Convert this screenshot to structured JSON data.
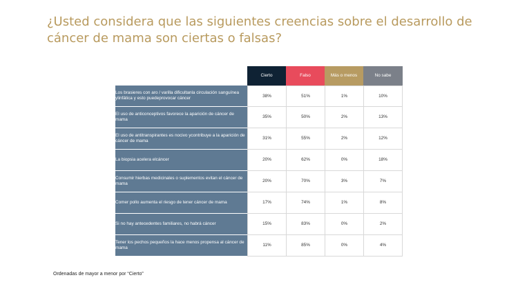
{
  "title": "¿Usted considera que las siguientes creencias sobre el desarrollo de cáncer de  mama son ciertas o falsas?",
  "footnote": "Ordenadas de mayor a menor por “Cierto”",
  "colors": {
    "title": "#b89a5e",
    "cierto": "#0f2234",
    "falso": "#e84b5c",
    "mas_o_menos": "#b79b62",
    "no_sabe": "#7b8089",
    "row_label_bg": "#5f7a93"
  },
  "chart_data": {
    "type": "table",
    "columns": [
      "Cierto",
      "Falso",
      "Más o menos",
      "No sabe"
    ],
    "rows": [
      {
        "label": "Los  brasieres con aro / varilla dificultanla circulación sanguínea ylinfática  y esto puedeprovocar cáncer",
        "values": [
          "38%",
          "51%",
          "1%",
          "10%"
        ]
      },
      {
        "label": "El uso de anticonceptivos favorece la aparición de cáncer de mama",
        "values": [
          "35%",
          "50%",
          "2%",
          "13%"
        ]
      },
      {
        "label": "El uso de antitranspirantes es nocivo ycontribuye a la aparición de cáncer de mama",
        "values": [
          "31%",
          "55%",
          "2%",
          "12%"
        ]
      },
      {
        "label": "La  biopsia acelera elcáncer",
        "values": [
          "20%",
          "62%",
          "0%",
          "18%"
        ]
      },
      {
        "label": "Consumir hierbas medicinales o suplementos evitan el cáncer de mama",
        "values": [
          "20%",
          "70%",
          "3%",
          "7%"
        ]
      },
      {
        "label": "Comer pollo aumenta el riesgo de tener cáncer de mama",
        "values": [
          "17%",
          "74%",
          "1%",
          "8%"
        ]
      },
      {
        "label": "Si  no hay antecedentes familiares, no habrá cáncer",
        "values": [
          "15%",
          "83%",
          "0%",
          "2%"
        ]
      },
      {
        "label": "Tener los pechos pequeños la hace menos propensa al cáncer de mama",
        "values": [
          "11%",
          "85%",
          "0%",
          "4%"
        ]
      }
    ]
  }
}
